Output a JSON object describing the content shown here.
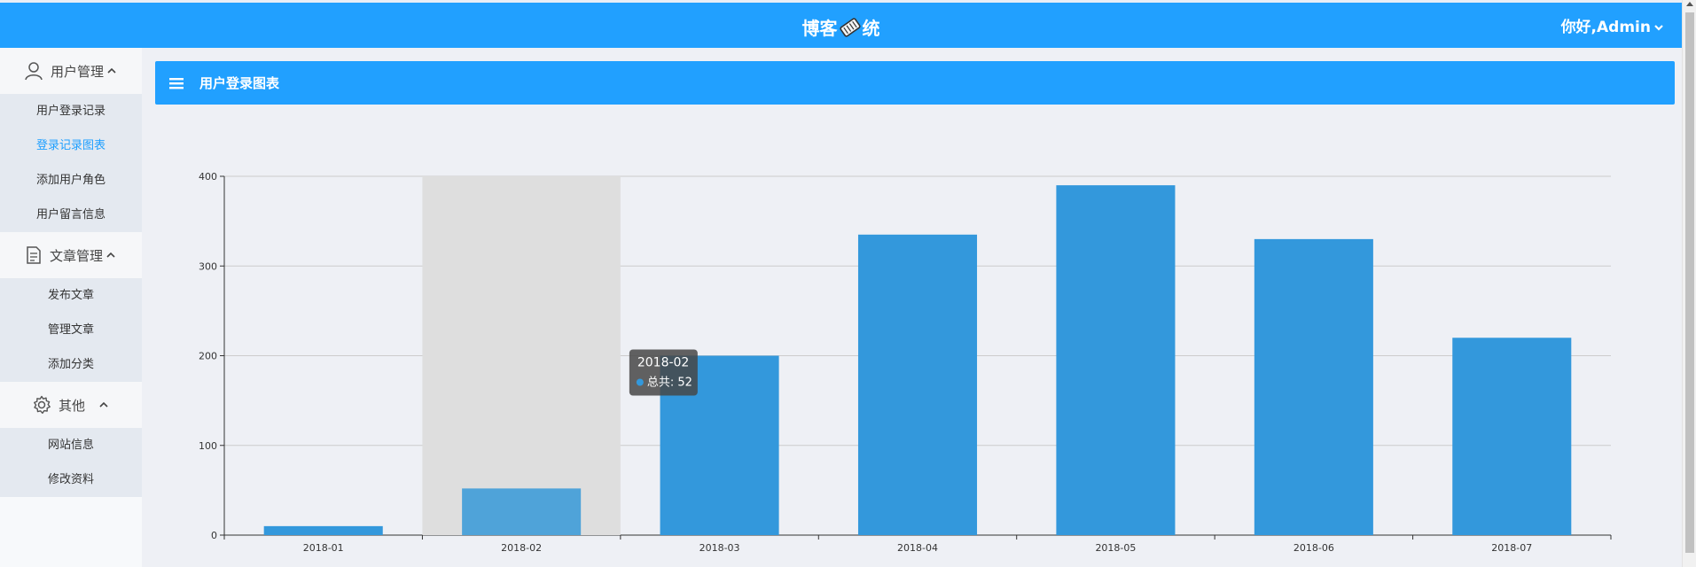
{
  "header": {
    "brand_left": "博客",
    "brand_right": "统",
    "user_greeting": "你好,Admin"
  },
  "sidebar": {
    "groups": [
      {
        "label": "用户管理",
        "items": [
          "用户登录记录",
          "登录记录图表",
          "添加用户角色",
          "用户留言信息"
        ]
      },
      {
        "label": "文章管理",
        "items": [
          "发布文章",
          "管理文章",
          "添加分类"
        ]
      },
      {
        "label": "其他",
        "items": [
          "网站信息",
          "修改资料"
        ]
      }
    ],
    "active_item": "登录记录图表"
  },
  "panel": {
    "title": "用户登录图表"
  },
  "colors": {
    "primary": "#21a0ff",
    "bar": "#3398dc",
    "bar_highlight": "#4fa3d9",
    "hover_band": "#dedede"
  },
  "chart_data": {
    "type": "bar",
    "categories": [
      "2018-01",
      "2018-02",
      "2018-03",
      "2018-04",
      "2018-05",
      "2018-06",
      "2018-07"
    ],
    "values": [
      10,
      52,
      200,
      335,
      390,
      330,
      220
    ],
    "ylim": [
      0,
      400
    ],
    "yticks": [
      0,
      100,
      200,
      300,
      400
    ],
    "grid": true,
    "hovered_index": 1,
    "tooltip": {
      "title": "2018-02",
      "series_name": "总共",
      "value": 52
    }
  }
}
